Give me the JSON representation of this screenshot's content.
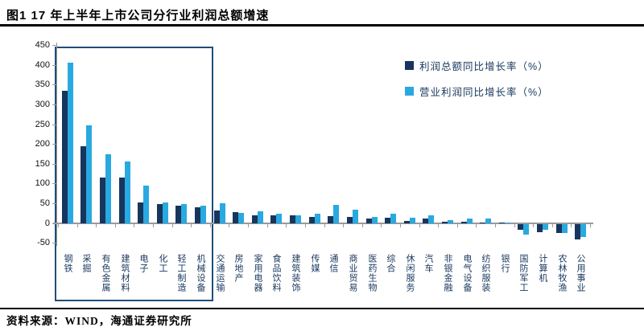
{
  "header": {
    "title": "图1  17 年上半年上市公司分行业利润总额增速"
  },
  "footer": {
    "source": "资料来源：WIND，海通证券研究所"
  },
  "colors": {
    "profit_total_bar": "#17365d",
    "operating_profit_bar": "#29a9e1",
    "axis": "#9a9a9a",
    "highlight_box_border": "#1f4e79",
    "x_label_text": "#17365d",
    "legend_text": "#17365d"
  },
  "chart_data": {
    "type": "bar",
    "title": "17 年上半年上市公司分行业利润总额增速",
    "categories": [
      "钢铁",
      "采掘",
      "有色金属",
      "建筑材料",
      "电子",
      "化工",
      "轻工制造",
      "机械设备",
      "交通运输",
      "房地产",
      "家用电器",
      "食品饮料",
      "建筑装饰",
      "传媒",
      "通信",
      "商业贸易",
      "医药生物",
      "综合",
      "休闲服务",
      "汽车",
      "非银金融",
      "电气设备",
      "纺织服装",
      "银行",
      "国防军工",
      "计算机",
      "农林牧渔",
      "公用事业"
    ],
    "series": [
      {
        "name": "利润总额同比增长率（%）",
        "color": "#17365d",
        "values": [
          336,
          195,
          116,
          116,
          53,
          48,
          44,
          40,
          32,
          28,
          21,
          20,
          21,
          17,
          18,
          16,
          13,
          14,
          6,
          12,
          5,
          5,
          3,
          2,
          -15,
          -20,
          -22,
          -39
        ]
      },
      {
        "name": "营业利润同比增长率（%）",
        "color": "#29a9e1",
        "values": [
          407,
          247,
          174,
          156,
          95,
          52,
          48,
          45,
          50,
          27,
          31,
          24,
          21,
          24,
          47,
          34,
          17,
          24,
          15,
          20,
          8,
          13,
          13,
          1,
          -26,
          -15,
          -22,
          -33
        ]
      }
    ],
    "ylim": [
      -50,
      450
    ],
    "ytick_step": 50,
    "grid": false,
    "legend_position": "top-right-inside",
    "annotations": {
      "highlight_box": {
        "from_index": 0,
        "to_index": 7
      }
    }
  }
}
